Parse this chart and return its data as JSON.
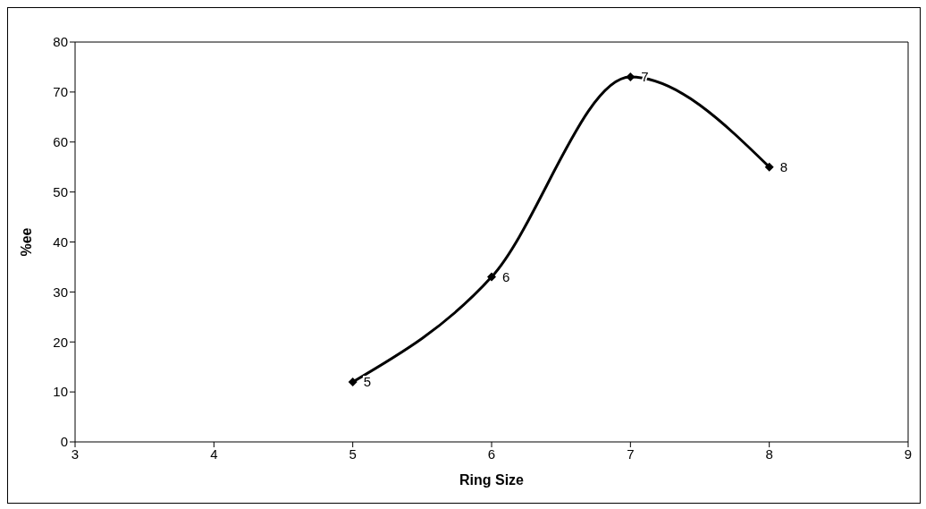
{
  "chart_data": {
    "type": "line",
    "xlabel": "Ring Size",
    "ylabel": "%ee",
    "x": [
      5,
      6,
      7,
      8
    ],
    "series": [
      {
        "color": "#000000",
        "values": [
          12,
          33,
          73,
          55
        ]
      }
    ],
    "annotations": [
      {
        "text": "5",
        "x": 5,
        "y": 12
      },
      {
        "text": "6",
        "x": 6,
        "y": 33
      },
      {
        "text": "7",
        "x": 7,
        "y": 73
      },
      {
        "text": "8",
        "x": 8,
        "y": 55
      }
    ],
    "xlim": [
      3,
      9
    ],
    "xticks": [
      3,
      4,
      5,
      6,
      7,
      8,
      9
    ],
    "ylim": [
      0,
      80
    ],
    "yticks": [
      0,
      10,
      20,
      30,
      40,
      50,
      60,
      70,
      80
    ],
    "grid": false,
    "legend": false,
    "marker": "diamond",
    "line_style": "solid"
  }
}
